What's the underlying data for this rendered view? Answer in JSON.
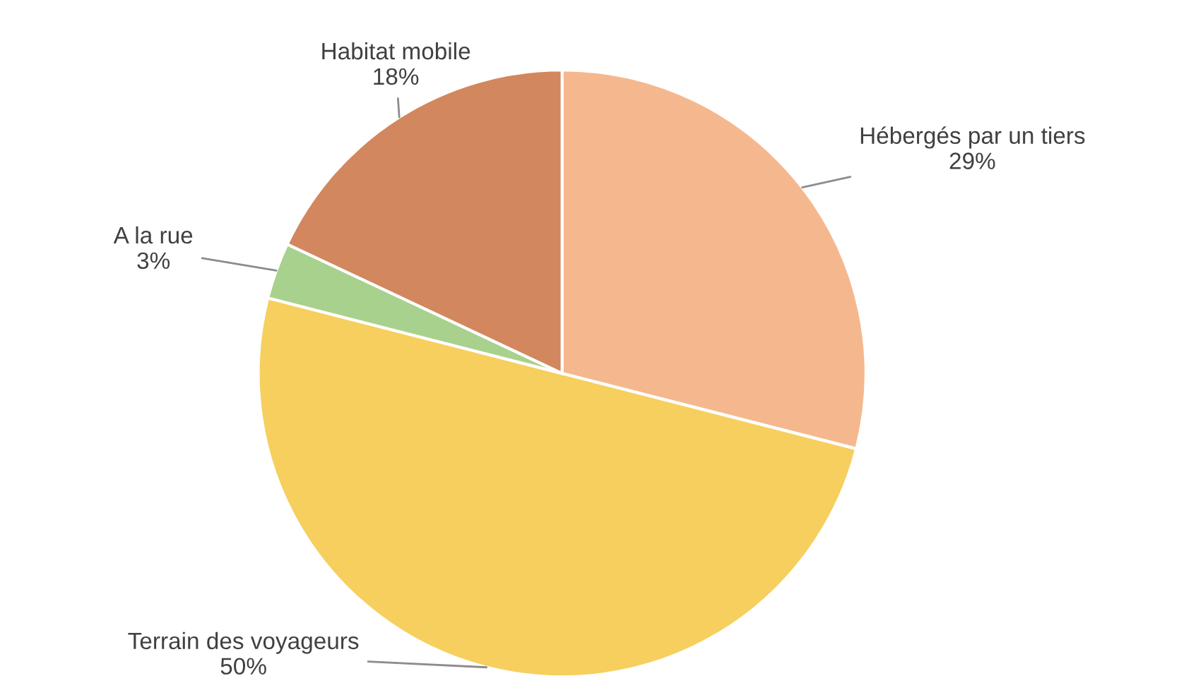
{
  "chart_data": {
    "type": "pie",
    "categories": [
      "Hébergés par un tiers",
      "Terrain des voyageurs",
      "A la rue",
      "Habitat mobile"
    ],
    "values": [
      29,
      50,
      3,
      18
    ],
    "value_labels": [
      "29%",
      "50%",
      "3%",
      "18%"
    ],
    "colors": [
      "#f5b88e",
      "#f6cf5e",
      "#a9d18e",
      "#d2875e"
    ]
  }
}
